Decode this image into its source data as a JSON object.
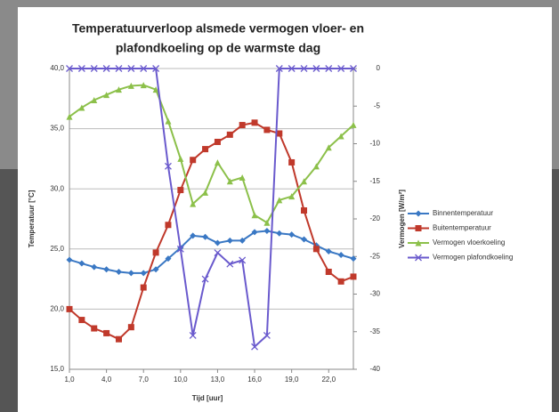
{
  "chart_data": {
    "type": "line",
    "title": [
      "Temperatuurverloop alsmede vermogen vloer- en",
      "plafondkoeling op de warmste dag"
    ],
    "xlabel": "Tijd [uur]",
    "ylabel": "Temperatuur [°C]",
    "y2label": "Vermogen [W/m²]",
    "x": [
      1,
      2,
      3,
      4,
      5,
      6,
      7,
      8,
      9,
      10,
      11,
      12,
      13,
      14,
      15,
      16,
      17,
      18,
      19,
      20,
      21,
      22,
      23,
      24
    ],
    "xlim": [
      1,
      24
    ],
    "xticks": [
      {
        "value": 1,
        "label": "1,0"
      },
      {
        "value": 4,
        "label": "4,0"
      },
      {
        "value": 7,
        "label": "7,0"
      },
      {
        "value": 10,
        "label": "10,0"
      },
      {
        "value": 13,
        "label": "13,0"
      },
      {
        "value": 16,
        "label": "16,0"
      },
      {
        "value": 19,
        "label": "19,0"
      },
      {
        "value": 22,
        "label": "22,0"
      }
    ],
    "ylim": [
      15,
      40
    ],
    "yticks": [
      {
        "value": 15,
        "label": "15,0"
      },
      {
        "value": 20,
        "label": "20,0"
      },
      {
        "value": 25,
        "label": "25,0"
      },
      {
        "value": 30,
        "label": "30,0"
      },
      {
        "value": 35,
        "label": "35,0"
      },
      {
        "value": 40,
        "label": "40,0"
      }
    ],
    "y2lim": [
      -40,
      0
    ],
    "y2ticks": [
      -40,
      -35,
      -30,
      -25,
      -20,
      -15,
      -10,
      -5,
      0
    ],
    "grid": true,
    "legend": "right",
    "series": [
      {
        "name": "Binnentemperatuur",
        "color": "#3a78c4",
        "marker": "diamond",
        "values": [
          24.1,
          23.8,
          23.5,
          23.3,
          23.1,
          23.0,
          23.0,
          23.3,
          24.2,
          25.1,
          26.1,
          26.0,
          25.5,
          25.7,
          25.7,
          26.4,
          26.5,
          26.3,
          26.2,
          25.8,
          25.3,
          24.8,
          24.5,
          24.2
        ]
      },
      {
        "name": "Buitentemperatuur",
        "color": "#c0392b",
        "marker": "square",
        "values": [
          20.0,
          19.1,
          18.4,
          18.0,
          17.5,
          18.5,
          21.8,
          24.7,
          27.0,
          29.9,
          32.4,
          33.3,
          33.9,
          34.5,
          35.3,
          35.5,
          34.9,
          34.6,
          32.2,
          28.2,
          25.0,
          23.1,
          22.3,
          22.7
        ]
      },
      {
        "name": "Vermogen vloerkoeling",
        "color": "#8cc04a",
        "marker": "triangle",
        "axis": "y2",
        "values": [
          -6.4,
          -5.2,
          -4.2,
          -3.5,
          -2.8,
          -2.3,
          -2.2,
          -2.8,
          -7.0,
          -12.0,
          -18.0,
          -16.5,
          -12.5,
          -15.0,
          -14.5,
          -19.5,
          -20.5,
          -17.5,
          -17.0,
          -15.0,
          -13.0,
          -10.5,
          -9.0,
          -7.5
        ]
      },
      {
        "name": "Vermogen plafondkoeling",
        "color": "#6a5acd",
        "marker": "x",
        "axis": "y2",
        "values": [
          0,
          0,
          0,
          0,
          0,
          0,
          0,
          0,
          -13,
          -24,
          -35.5,
          -28,
          -24.5,
          -26,
          -25.5,
          -37,
          -35.5,
          0,
          0,
          0,
          0,
          0,
          0,
          0
        ]
      }
    ]
  }
}
